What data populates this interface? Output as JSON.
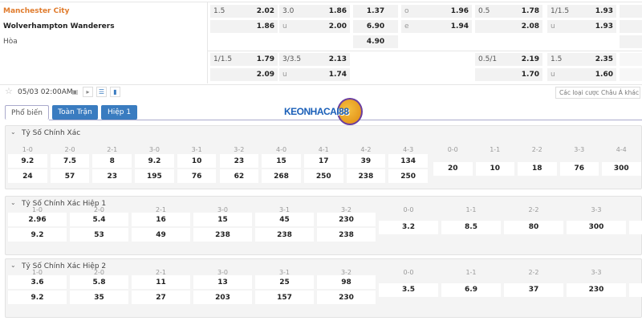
{
  "match": {
    "home": "Manchester City",
    "away": "Wolverhampton Wanderers",
    "draw": "Hòa",
    "home_color": "#e07b2c"
  },
  "odds": [
    {
      "label": "1.5",
      "value": "2.02"
    },
    {
      "label": "",
      "value": "1.86"
    },
    {
      "label": "3.0",
      "value": "1.86"
    },
    {
      "label": "u",
      "value": "2.00"
    },
    {
      "label": "",
      "value": "1.37"
    },
    {
      "label": "",
      "value": "6.90"
    },
    {
      "label": "",
      "value": "4.90"
    },
    {
      "label": "o",
      "value": "1.96"
    },
    {
      "label": "e",
      "value": "1.94"
    },
    {
      "label": "0.5",
      "value": "1.78"
    },
    {
      "label": "",
      "value": "2.08"
    },
    {
      "label": "1/1.5",
      "value": "1.93"
    },
    {
      "label": "u",
      "value": "1.93"
    },
    {
      "label": "1/1.5",
      "value": "1.79"
    },
    {
      "label": "",
      "value": "2.09"
    },
    {
      "label": "3/3.5",
      "value": "2.13"
    },
    {
      "label": "u",
      "value": "1.74"
    },
    {
      "label": "0.5/1",
      "value": "2.19"
    },
    {
      "label": "",
      "value": "1.70"
    },
    {
      "label": "1.5",
      "value": "2.35"
    },
    {
      "label": "u",
      "value": "1.60"
    }
  ],
  "toolbar": {
    "datetime": "05/03 02:00AM",
    "icons": [
      "star-icon",
      "calendar-icon",
      "play-icon",
      "list-icon",
      "chart-icon"
    ],
    "dropdown": "Các loại cược Châu Á khác"
  },
  "tabs": [
    "Phổ biến",
    "Toàn Trận",
    "Hiệp 1"
  ],
  "logo": "KEONHACAI88",
  "sections": [
    {
      "title": "Tỷ Số Chính Xác",
      "left": [
        [
          "1-0",
          "9.2",
          "24"
        ],
        [
          "2-0",
          "7.5",
          "57"
        ],
        [
          "2-1",
          "8",
          "23"
        ],
        [
          "3-0",
          "9.2",
          "195"
        ],
        [
          "3-1",
          "10",
          "76"
        ],
        [
          "3-2",
          "23",
          "62"
        ],
        [
          "4-0",
          "15",
          "268"
        ],
        [
          "4-1",
          "17",
          "250"
        ],
        [
          "4-2",
          "39",
          "238"
        ],
        [
          "4-3",
          "134",
          "250"
        ]
      ],
      "right": [
        [
          "0-0",
          "20"
        ],
        [
          "1-1",
          "10"
        ],
        [
          "2-2",
          "18"
        ],
        [
          "3-3",
          "76"
        ],
        [
          "4-4",
          "300"
        ]
      ]
    },
    {
      "title": "Tỷ Số Chính Xác Hiệp 1",
      "left": [
        [
          "1-0",
          "2.96",
          "9.2"
        ],
        [
          "2-0",
          "5.4",
          "53"
        ],
        [
          "2-1",
          "16",
          "49"
        ],
        [
          "3-0",
          "15",
          "238"
        ],
        [
          "3-1",
          "45",
          "238"
        ],
        [
          "3-2",
          "230",
          "238"
        ]
      ],
      "right": [
        [
          "0-0",
          "3.2"
        ],
        [
          "1-1",
          "8.5"
        ],
        [
          "2-2",
          "80"
        ],
        [
          "3-3",
          "300"
        ]
      ]
    },
    {
      "title": "Tỷ Số Chính Xác Hiệp 2",
      "left": [
        [
          "1-0",
          "3.6",
          "9.2"
        ],
        [
          "2-0",
          "5.8",
          "35"
        ],
        [
          "2-1",
          "11",
          "27"
        ],
        [
          "3-0",
          "13",
          "203"
        ],
        [
          "3-1",
          "25",
          "157"
        ],
        [
          "3-2",
          "98",
          "230"
        ]
      ],
      "right": [
        [
          "0-0",
          "3.5"
        ],
        [
          "1-1",
          "6.9"
        ],
        [
          "2-2",
          "37"
        ],
        [
          "3-3",
          "230"
        ]
      ]
    }
  ]
}
